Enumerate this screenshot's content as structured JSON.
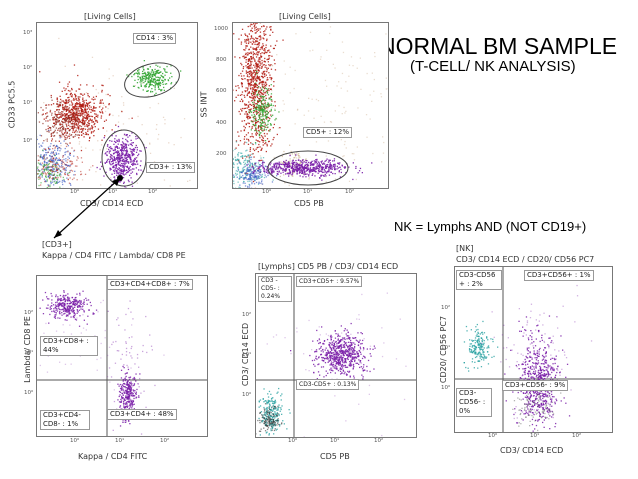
{
  "title": {
    "main": "NORMAL BM SAMPLE",
    "sub": "(T-CELL/ NK ANALYSIS)"
  },
  "note": "NK = Lymphs AND (NOT CD19+)",
  "colors": {
    "purple": "#7a1fa8",
    "red": "#b11a10",
    "green": "#2ea32e",
    "cyan": "#2aa3a3",
    "blue": "#2b4dbf"
  },
  "plots": {
    "p1": {
      "gate": "[Living Cells]",
      "ylabel": "CD33 PC5.5",
      "xlabel": "CD3/ CD14 ECD",
      "yticks": [
        "10³",
        "10²",
        "10¹",
        "10⁰"
      ],
      "xticks": [
        "10⁰",
        "10¹",
        "10²"
      ],
      "labels": {
        "cd14": "CD14 : 3%",
        "cd3": "CD3+ : 13%"
      }
    },
    "p2": {
      "gate": "[Living Cells]",
      "ylabel": "SS INT",
      "xlabel": "CD5 PB",
      "yticks": [
        "1000",
        "800",
        "600",
        "400",
        "200"
      ],
      "xticks": [
        "10⁰",
        "10¹",
        "10²"
      ],
      "labels": {
        "cd5": "CD5+ : 12%"
      }
    },
    "p3": {
      "gate": "[CD3+]",
      "title": "Kappa / CD4 FITC / Lambda/ CD8 PE",
      "ylabel": "Lambda/ CD8 PE",
      "xlabel": "Kappa / CD4 FITC",
      "yticks": [
        "10²",
        "10¹",
        "10⁰"
      ],
      "xticks": [
        "10⁰",
        "10¹",
        "10²"
      ],
      "labels": {
        "ur": "CD3+CD4+CD8+ : 7%",
        "ul": "CD3+CD8+ : 44%",
        "ll": "CD3+CD4- CD8- : 1%",
        "lr": "CD3+CD4+ : 48%"
      }
    },
    "p4": {
      "gate": "[Lymphs] CD5 PB / CD3/ CD14 ECD",
      "ylabel": "CD3/ CD14 ECD",
      "xlabel": "CD5 PB",
      "yticks": [
        "10²",
        "10¹",
        "10⁰"
      ],
      "xticks": [
        "10⁰",
        "10¹",
        "10²"
      ],
      "labels": {
        "ul": "CD3 -CD5- : 0.24%",
        "ur": "CD3+CD5+ : 9.57%",
        "lr": "CD3-CD5+ : 0.13%"
      }
    },
    "p5": {
      "gate": "[NK]",
      "title": "CD3/ CD14 ECD / CD20/ CD56 PC7",
      "ylabel": "CD20/ CD56 PC7",
      "xlabel": "CD3/ CD14 ECD",
      "yticks": [
        "10²",
        "10¹",
        "10⁰"
      ],
      "xticks": [
        "10⁰",
        "10¹",
        "10²"
      ],
      "labels": {
        "ul": "CD3-CD56 + : 2%",
        "ur": "CD3+CD56+ : 1%",
        "ll": "CD3- CD56- : 0%",
        "lr": "CD3+CD56- : 9%"
      }
    }
  }
}
